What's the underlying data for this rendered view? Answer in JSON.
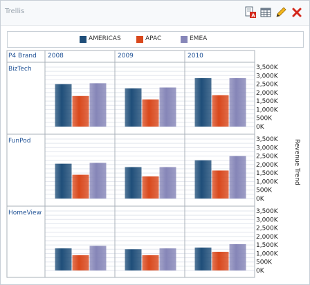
{
  "window": {
    "title": "Trellis"
  },
  "toolbar": {
    "icons": [
      "export-icon",
      "table-icon",
      "edit-pencil-icon",
      "close-icon"
    ]
  },
  "legend": {
    "series": [
      {
        "name": "AMERICAS",
        "color": "#1f4e79"
      },
      {
        "name": "APAC",
        "color": "#d9481c"
      },
      {
        "name": "EMEA",
        "color": "#8686b8"
      }
    ]
  },
  "grid": {
    "corner_label": "P4 Brand",
    "columns": [
      "2008",
      "2009",
      "2010"
    ],
    "rows": [
      "BizTech",
      "FunPod",
      "HomeView"
    ],
    "y_axis_title": "Revenue Trend",
    "y_ticks": [
      "0K",
      "500K",
      "1,000K",
      "1,500K",
      "2,000K",
      "2,500K",
      "3,000K",
      "3,500K"
    ]
  },
  "chart_data": {
    "type": "bar",
    "series": [
      "AMERICAS",
      "APAC",
      "EMEA"
    ],
    "ylim": [
      0,
      3500000
    ],
    "ylabel": "Revenue Trend",
    "panels": [
      {
        "brand": "BizTech",
        "year": "2008",
        "values": [
          2500000,
          1800000,
          2550000
        ]
      },
      {
        "brand": "BizTech",
        "year": "2009",
        "values": [
          2250000,
          1600000,
          2300000
        ]
      },
      {
        "brand": "BizTech",
        "year": "2010",
        "values": [
          2850000,
          1850000,
          2850000
        ]
      },
      {
        "brand": "FunPod",
        "year": "2008",
        "values": [
          2050000,
          1400000,
          2100000
        ]
      },
      {
        "brand": "FunPod",
        "year": "2009",
        "values": [
          1850000,
          1300000,
          1850000
        ]
      },
      {
        "brand": "FunPod",
        "year": "2010",
        "values": [
          2250000,
          1650000,
          2500000
        ]
      },
      {
        "brand": "HomeView",
        "year": "2008",
        "values": [
          1300000,
          900000,
          1450000
        ]
      },
      {
        "brand": "HomeView",
        "year": "2009",
        "values": [
          1250000,
          900000,
          1300000
        ]
      },
      {
        "brand": "HomeView",
        "year": "2010",
        "values": [
          1350000,
          1100000,
          1550000
        ]
      }
    ]
  }
}
